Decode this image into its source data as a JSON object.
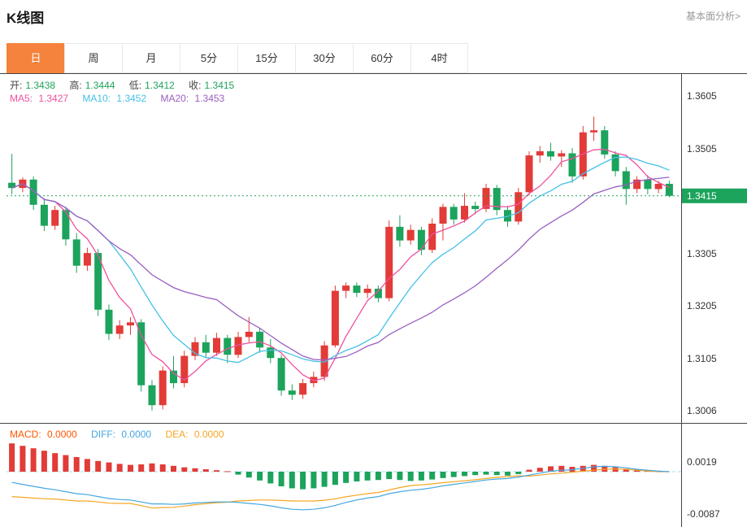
{
  "header": {
    "title": "K线图",
    "analysis_link": "基本面分析>"
  },
  "tabs": [
    {
      "id": "day",
      "label": "日",
      "active": true
    },
    {
      "id": "week",
      "label": "周",
      "active": false
    },
    {
      "id": "month",
      "label": "月",
      "active": false
    },
    {
      "id": "m5",
      "label": "5分",
      "active": false
    },
    {
      "id": "m15",
      "label": "15分",
      "active": false
    },
    {
      "id": "m30",
      "label": "30分",
      "active": false
    },
    {
      "id": "m60",
      "label": "60分",
      "active": false
    },
    {
      "id": "h4",
      "label": "4时",
      "active": false
    }
  ],
  "overlay": {
    "open_label": "开:",
    "open": "1.3438",
    "high_label": "高:",
    "high": "1.3444",
    "low_label": "低:",
    "low": "1.3412",
    "close_label": "收:",
    "close": "1.3415",
    "ma5_label": "MA5:",
    "ma5": "1.3427",
    "ma10_label": "MA10:",
    "ma10": "1.3452",
    "ma20_label": "MA20:",
    "ma20": "1.3453",
    "macd_label": "MACD:",
    "macd": "0.0000",
    "diff_label": "DIFF:",
    "diff": "0.0000",
    "dea_label": "DEA:",
    "dea": "0.0000"
  },
  "axis": {
    "main": [
      "1.3605",
      "1.3505",
      "1.3305",
      "1.3205",
      "1.3105",
      "1.3006"
    ],
    "price_badge": "1.3415",
    "macd": [
      "0.0019",
      "-0.0087"
    ]
  },
  "colors": {
    "up": "#e23b38",
    "down": "#1ca35c",
    "ma5": "#f0509e",
    "ma10": "#45c0e8",
    "ma20": "#9a5fc0",
    "diff": "#45a8e0",
    "dea": "#f5a623",
    "macd_label": "#ff5500",
    "accent": "#f5823d",
    "zero_line": "#a8d8f0",
    "link": "#999999"
  },
  "chart_data": [
    {
      "type": "candlestick",
      "title": "K线图 (日)",
      "ylim": [
        1.299,
        1.3641
      ],
      "y_ticks": [
        1.3605,
        1.3505,
        1.3405,
        1.3305,
        1.3205,
        1.3105,
        1.3006
      ],
      "current_price": 1.3415,
      "latest": {
        "open": 1.3438,
        "high": 1.3444,
        "low": 1.3412,
        "close": 1.3415
      },
      "ma_periods": [
        5,
        10,
        20
      ],
      "ma_latest": {
        "ma5": 1.3427,
        "ma10": 1.3452,
        "ma20": 1.3453
      },
      "legend": [
        "MA5",
        "MA10",
        "MA20"
      ],
      "grid": false,
      "candles": [
        [
          1.344,
          1.3495,
          1.3418,
          1.343
        ],
        [
          1.343,
          1.345,
          1.3422,
          1.3446
        ],
        [
          1.3446,
          1.3452,
          1.3388,
          1.3398
        ],
        [
          1.3398,
          1.341,
          1.3348,
          1.3358
        ],
        [
          1.3358,
          1.3396,
          1.335,
          1.3388
        ],
        [
          1.3388,
          1.3394,
          1.332,
          1.3332
        ],
        [
          1.3332,
          1.3344,
          1.3268,
          1.3282
        ],
        [
          1.3282,
          1.3316,
          1.3272,
          1.3306
        ],
        [
          1.3306,
          1.3314,
          1.3186,
          1.3198
        ],
        [
          1.3198,
          1.3208,
          1.314,
          1.3152
        ],
        [
          1.3152,
          1.3178,
          1.3142,
          1.3168
        ],
        [
          1.3168,
          1.3184,
          1.315,
          1.3174
        ],
        [
          1.3174,
          1.318,
          1.3042,
          1.3054
        ],
        [
          1.3054,
          1.3064,
          1.3006,
          1.3016
        ],
        [
          1.3016,
          1.309,
          1.3008,
          1.3082
        ],
        [
          1.3082,
          1.311,
          1.3048,
          1.3058
        ],
        [
          1.3058,
          1.312,
          1.305,
          1.311
        ],
        [
          1.311,
          1.3146,
          1.3102,
          1.3136
        ],
        [
          1.3136,
          1.315,
          1.3106,
          1.3116
        ],
        [
          1.3116,
          1.3154,
          1.311,
          1.3144
        ],
        [
          1.3144,
          1.315,
          1.3096,
          1.3112
        ],
        [
          1.3112,
          1.3156,
          1.3106,
          1.3146
        ],
        [
          1.3146,
          1.3184,
          1.3136,
          1.3156
        ],
        [
          1.3156,
          1.3162,
          1.3116,
          1.3126
        ],
        [
          1.3126,
          1.3142,
          1.3096,
          1.3106
        ],
        [
          1.3106,
          1.3112,
          1.3034,
          1.3044
        ],
        [
          1.3044,
          1.3056,
          1.3026,
          1.3036
        ],
        [
          1.3036,
          1.3066,
          1.3028,
          1.3058
        ],
        [
          1.3058,
          1.308,
          1.305,
          1.307
        ],
        [
          1.307,
          1.3138,
          1.3062,
          1.313
        ],
        [
          1.313,
          1.3244,
          1.3126,
          1.3234
        ],
        [
          1.3234,
          1.325,
          1.322,
          1.3244
        ],
        [
          1.3244,
          1.325,
          1.3222,
          1.323
        ],
        [
          1.323,
          1.3246,
          1.322,
          1.3238
        ],
        [
          1.3238,
          1.3244,
          1.3212,
          1.322
        ],
        [
          1.322,
          1.3368,
          1.3214,
          1.3356
        ],
        [
          1.3356,
          1.3378,
          1.3318,
          1.333
        ],
        [
          1.333,
          1.336,
          1.3322,
          1.335
        ],
        [
          1.335,
          1.3356,
          1.3302,
          1.3312
        ],
        [
          1.3312,
          1.3372,
          1.3306,
          1.3362
        ],
        [
          1.3362,
          1.34,
          1.333,
          1.3394
        ],
        [
          1.3394,
          1.34,
          1.336,
          1.337
        ],
        [
          1.337,
          1.342,
          1.3364,
          1.3396
        ],
        [
          1.3396,
          1.3404,
          1.338,
          1.339
        ],
        [
          1.339,
          1.3438,
          1.3384,
          1.343
        ],
        [
          1.343,
          1.3436,
          1.3378,
          1.3388
        ],
        [
          1.3388,
          1.3396,
          1.3356,
          1.3366
        ],
        [
          1.3366,
          1.343,
          1.336,
          1.3422
        ],
        [
          1.3422,
          1.35,
          1.3416,
          1.3492
        ],
        [
          1.3492,
          1.351,
          1.3478,
          1.35
        ],
        [
          1.35,
          1.3516,
          1.3482,
          1.349
        ],
        [
          1.349,
          1.3502,
          1.347,
          1.3496
        ],
        [
          1.3496,
          1.3506,
          1.344,
          1.3452
        ],
        [
          1.3452,
          1.3548,
          1.3446,
          1.3536
        ],
        [
          1.3536,
          1.3566,
          1.352,
          1.354
        ],
        [
          1.354,
          1.3548,
          1.3486,
          1.3494
        ],
        [
          1.3494,
          1.35,
          1.3452,
          1.3462
        ],
        [
          1.3462,
          1.347,
          1.3398,
          1.3428
        ],
        [
          1.3428,
          1.3452,
          1.342,
          1.3446
        ],
        [
          1.3446,
          1.3454,
          1.3418,
          1.3428
        ],
        [
          1.3428,
          1.3444,
          1.342,
          1.3438
        ],
        [
          1.3438,
          1.3444,
          1.3412,
          1.3415
        ]
      ]
    },
    {
      "type": "bar",
      "title": "MACD(12,26,9)",
      "ylim": [
        -0.0113,
        0.008
      ],
      "y_ticks": [
        0.0019,
        -0.0087
      ],
      "latest": {
        "macd": 0.0,
        "diff": 0.0,
        "dea": 0.0
      },
      "hist": [
        0.0058,
        0.0053,
        0.0048,
        0.0043,
        0.0038,
        0.0034,
        0.003,
        0.0026,
        0.0022,
        0.0019,
        0.0016,
        0.0014,
        0.0015,
        0.0017,
        0.0015,
        0.0012,
        0.0009,
        0.0007,
        0.0005,
        0.0003,
        0.0001,
        -0.0006,
        -0.0012,
        -0.0018,
        -0.0024,
        -0.003,
        -0.0034,
        -0.0036,
        -0.0034,
        -0.0031,
        -0.0027,
        -0.0023,
        -0.002,
        -0.0018,
        -0.0017,
        -0.0015,
        -0.0017,
        -0.0019,
        -0.0018,
        -0.0016,
        -0.0013,
        -0.0011,
        -0.0009,
        -0.0007,
        -0.0006,
        -0.0007,
        -0.0008,
        -0.0005,
        0.0004,
        0.0008,
        0.0011,
        0.0012,
        0.001,
        0.0012,
        0.0014,
        0.0012,
        0.0009,
        0.0006,
        0.0004,
        0.0003,
        0.0002,
        0.0
      ],
      "diff": [
        -0.0022,
        -0.0026,
        -0.003,
        -0.0034,
        -0.0037,
        -0.0041,
        -0.0045,
        -0.0047,
        -0.0051,
        -0.0055,
        -0.0057,
        -0.0058,
        -0.0062,
        -0.0066,
        -0.0066,
        -0.0067,
        -0.0066,
        -0.0064,
        -0.0063,
        -0.0062,
        -0.0062,
        -0.0063,
        -0.0065,
        -0.0067,
        -0.007,
        -0.0074,
        -0.0077,
        -0.0078,
        -0.0077,
        -0.0074,
        -0.0069,
        -0.0063,
        -0.0058,
        -0.0054,
        -0.0051,
        -0.0045,
        -0.0041,
        -0.0038,
        -0.0036,
        -0.0033,
        -0.0029,
        -0.0026,
        -0.0023,
        -0.002,
        -0.0017,
        -0.0015,
        -0.0014,
        -0.0011,
        -0.0007,
        -0.0003,
        0.0001,
        0.0003,
        0.0004,
        0.0007,
        0.001,
        0.0011,
        0.001,
        0.0008,
        0.0005,
        0.0003,
        0.0001,
        0.0
      ]
    }
  ]
}
